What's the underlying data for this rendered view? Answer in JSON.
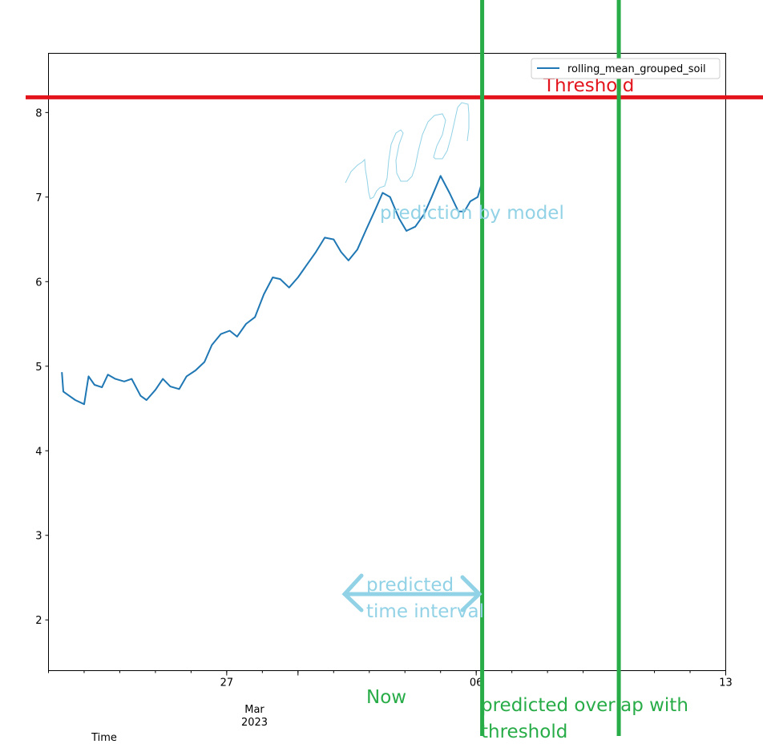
{
  "chart_data": {
    "type": "line",
    "title": "",
    "xlabel": "Time",
    "ylabel": "",
    "x_tick_labels": [
      "27",
      "06",
      "13"
    ],
    "x_month_label": "Mar",
    "x_year_label": "2023",
    "yticks": [
      "2",
      "3",
      "4",
      "5",
      "6",
      "7",
      "8"
    ],
    "ylim": [
      1.4,
      8.7
    ],
    "xlim": [
      "2023-02-22",
      "2023-03-13"
    ],
    "legend": {
      "position": "top-right",
      "entries": [
        "rolling_mean_grouped_soil"
      ]
    },
    "grid": false,
    "series": [
      {
        "name": "rolling_mean_grouped_soil",
        "color": "#1f77b4",
        "points": [
          [
            "2023-02-22 09:00",
            4.93
          ],
          [
            "2023-02-22 10:00",
            4.7
          ],
          [
            "2023-02-22 14:00",
            4.65
          ],
          [
            "2023-02-22 18:00",
            4.6
          ],
          [
            "2023-02-23 00:00",
            4.55
          ],
          [
            "2023-02-23 03:00",
            4.88
          ],
          [
            "2023-02-23 07:00",
            4.78
          ],
          [
            "2023-02-23 12:00",
            4.75
          ],
          [
            "2023-02-23 16:00",
            4.9
          ],
          [
            "2023-02-23 21:00",
            4.85
          ],
          [
            "2023-02-24 03:00",
            4.82
          ],
          [
            "2023-02-24 08:00",
            4.85
          ],
          [
            "2023-02-24 14:00",
            4.65
          ],
          [
            "2023-02-24 18:00",
            4.6
          ],
          [
            "2023-02-25 00:00",
            4.72
          ],
          [
            "2023-02-25 05:00",
            4.85
          ],
          [
            "2023-02-25 10:00",
            4.76
          ],
          [
            "2023-02-25 16:00",
            4.73
          ],
          [
            "2023-02-25 21:00",
            4.88
          ],
          [
            "2023-02-26 03:00",
            4.95
          ],
          [
            "2023-02-26 09:00",
            5.05
          ],
          [
            "2023-02-26 14:00",
            5.25
          ],
          [
            "2023-02-26 20:00",
            5.38
          ],
          [
            "2023-02-27 02:00",
            5.42
          ],
          [
            "2023-02-27 07:00",
            5.35
          ],
          [
            "2023-02-27 13:00",
            5.5
          ],
          [
            "2023-02-27 19:00",
            5.58
          ],
          [
            "2023-02-28 01:00",
            5.85
          ],
          [
            "2023-02-28 07:00",
            6.05
          ],
          [
            "2023-02-28 12:00",
            6.03
          ],
          [
            "2023-02-28 18:00",
            5.93
          ],
          [
            "2023-03-01 00:00",
            6.05
          ],
          [
            "2023-03-01 06:00",
            6.2
          ],
          [
            "2023-03-01 12:00",
            6.35
          ],
          [
            "2023-03-01 18:00",
            6.52
          ],
          [
            "2023-03-02 00:00",
            6.5
          ],
          [
            "2023-03-02 05:00",
            6.35
          ],
          [
            "2023-03-02 10:00",
            6.25
          ],
          [
            "2023-03-02 16:00",
            6.38
          ],
          [
            "2023-03-02 22:00",
            6.62
          ],
          [
            "2023-03-03 04:00",
            6.85
          ],
          [
            "2023-03-03 09:00",
            7.05
          ],
          [
            "2023-03-03 14:00",
            7.0
          ],
          [
            "2023-03-03 20:00",
            6.75
          ],
          [
            "2023-03-04 01:00",
            6.6
          ],
          [
            "2023-03-04 07:00",
            6.65
          ],
          [
            "2023-03-04 13:00",
            6.8
          ],
          [
            "2023-03-04 18:00",
            7.0
          ],
          [
            "2023-03-05 00:00",
            7.25
          ],
          [
            "2023-03-05 06:00",
            7.05
          ],
          [
            "2023-03-05 12:00",
            6.83
          ],
          [
            "2023-03-05 16:00",
            6.83
          ],
          [
            "2023-03-05 20:00",
            6.95
          ],
          [
            "2023-03-06 01:00",
            7.0
          ],
          [
            "2023-03-06 04:00",
            7.18
          ]
        ]
      }
    ]
  },
  "annotations": {
    "threshold_label": "Threshold",
    "prediction_label": "prediction by model",
    "interval_label_line1": "predicted",
    "interval_label_line2": "time interval",
    "now_label": "Now",
    "overlap_label_line1": "predicted overlap with",
    "overlap_label_line2": "threshold",
    "threshold_value": 8.18,
    "now_date": "2023-03-06 04:00",
    "overlap_date": "2023-03-10 00:00",
    "colors": {
      "threshold": "#e3141c",
      "marker": "#28ac48",
      "prediction": "#92d2e6",
      "series": "#1f77b4"
    }
  }
}
